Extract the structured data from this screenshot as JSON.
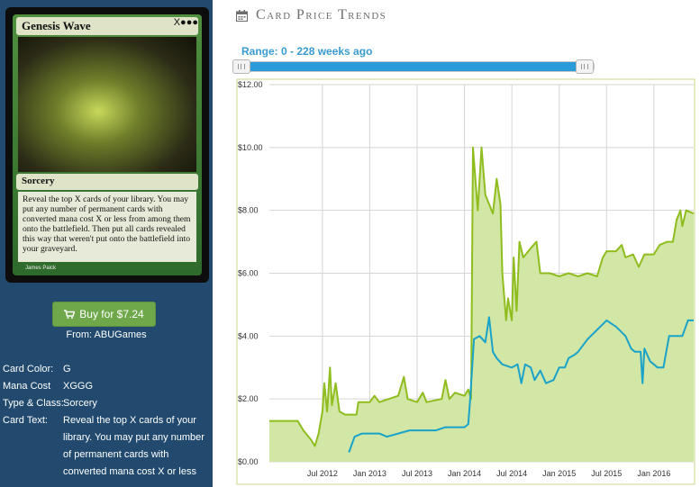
{
  "card": {
    "name": "Genesis Wave",
    "mana_symbols": "X●●●",
    "type_line": "Sorcery",
    "rules_text": "Reveal the top X cards of your library. You may put any number of permanent cards with converted mana cost X or less from among them onto the battlefield. Then put all cards revealed this way that weren't put onto the battlefield into your graveyard.",
    "artist": "James Paick"
  },
  "buy": {
    "label": "Buy for $7.24",
    "from": "From: ABUGames"
  },
  "details": [
    {
      "label": "Card Color:",
      "value": "G"
    },
    {
      "label": "Mana Cost",
      "value": "XGGG"
    },
    {
      "label": "Type & Class:",
      "value": "Sorcery"
    },
    {
      "label": "Card Text:",
      "value": "Reveal the top X cards of your library. You may put any number of permanent cards with converted mana cost X or less"
    }
  ],
  "trends": {
    "title": "Card Price Trends",
    "range_label": "Range: 0 - 228 weeks ago",
    "range_min": 0,
    "range_max": 228
  },
  "icons": {
    "calendar": "calendar-icon",
    "cart": "cart-icon"
  },
  "colors": {
    "paper": "#8fbd1d",
    "paper_fill": "#d2e6a6",
    "online": "#1aa3c8",
    "button": "#6fa84a",
    "sidebar": "#214a6e",
    "link": "#3a9bd0"
  },
  "chart_data": {
    "type": "area",
    "title": "",
    "xlabel": "",
    "ylabel": "",
    "ylim": [
      0,
      12
    ],
    "yticks": [
      "$0.00",
      "$2.00",
      "$4.00",
      "$6.00",
      "$8.00",
      "$10.00",
      "$12.00"
    ],
    "xlim": [
      2011.94,
      2016.42
    ],
    "xticks": [
      {
        "label": "Jul 2012",
        "x": 2012.5
      },
      {
        "label": "Jan 2013",
        "x": 2013.0
      },
      {
        "label": "Jul 2013",
        "x": 2013.5
      },
      {
        "label": "Jan 2014",
        "x": 2014.0
      },
      {
        "label": "Jul 2014",
        "x": 2014.5
      },
      {
        "label": "Jan 2015",
        "x": 2015.0
      },
      {
        "label": "Jul 2015",
        "x": 2015.5
      },
      {
        "label": "Jan 2016",
        "x": 2016.0
      }
    ],
    "grid": true,
    "series": [
      {
        "name": "",
        "color": "#8fbd1d",
        "points": [
          [
            2011.94,
            1.3
          ],
          [
            2012.24,
            1.3
          ],
          [
            2012.3,
            1.0
          ],
          [
            2012.38,
            0.7
          ],
          [
            2012.42,
            0.5
          ],
          [
            2012.46,
            0.9
          ],
          [
            2012.5,
            1.6
          ],
          [
            2012.52,
            2.5
          ],
          [
            2012.55,
            1.6
          ],
          [
            2012.58,
            3.0
          ],
          [
            2012.6,
            1.8
          ],
          [
            2012.64,
            2.5
          ],
          [
            2012.68,
            1.6
          ],
          [
            2012.74,
            1.5
          ],
          [
            2012.86,
            1.5
          ],
          [
            2012.88,
            1.9
          ],
          [
            2013.0,
            1.9
          ],
          [
            2013.05,
            2.1
          ],
          [
            2013.1,
            1.9
          ],
          [
            2013.2,
            2.0
          ],
          [
            2013.3,
            2.1
          ],
          [
            2013.36,
            2.7
          ],
          [
            2013.4,
            2.0
          ],
          [
            2013.5,
            1.9
          ],
          [
            2013.56,
            2.2
          ],
          [
            2013.6,
            1.9
          ],
          [
            2013.76,
            2.0
          ],
          [
            2013.8,
            2.6
          ],
          [
            2013.84,
            2.0
          ],
          [
            2013.9,
            2.2
          ],
          [
            2014.0,
            2.1
          ],
          [
            2014.04,
            2.3
          ],
          [
            2014.07,
            2.0
          ],
          [
            2014.09,
            10.0
          ],
          [
            2014.14,
            8.0
          ],
          [
            2014.18,
            10.0
          ],
          [
            2014.22,
            8.5
          ],
          [
            2014.3,
            7.9
          ],
          [
            2014.34,
            9.0
          ],
          [
            2014.38,
            8.2
          ],
          [
            2014.4,
            6.0
          ],
          [
            2014.44,
            4.5
          ],
          [
            2014.46,
            5.2
          ],
          [
            2014.5,
            4.5
          ],
          [
            2014.52,
            6.5
          ],
          [
            2014.55,
            4.8
          ],
          [
            2014.58,
            7.0
          ],
          [
            2014.62,
            6.5
          ],
          [
            2014.7,
            6.8
          ],
          [
            2014.76,
            7.0
          ],
          [
            2014.8,
            6.0
          ],
          [
            2014.9,
            6.0
          ],
          [
            2015.0,
            5.9
          ],
          [
            2015.1,
            6.0
          ],
          [
            2015.2,
            5.9
          ],
          [
            2015.3,
            6.0
          ],
          [
            2015.4,
            5.9
          ],
          [
            2015.46,
            6.5
          ],
          [
            2015.5,
            6.7
          ],
          [
            2015.6,
            6.7
          ],
          [
            2015.66,
            6.9
          ],
          [
            2015.7,
            6.5
          ],
          [
            2015.78,
            6.6
          ],
          [
            2015.84,
            6.2
          ],
          [
            2015.9,
            6.6
          ],
          [
            2016.0,
            6.6
          ],
          [
            2016.06,
            6.9
          ],
          [
            2016.14,
            7.0
          ],
          [
            2016.2,
            7.0
          ],
          [
            2016.24,
            7.7
          ],
          [
            2016.28,
            8.0
          ],
          [
            2016.3,
            7.5
          ],
          [
            2016.34,
            8.0
          ],
          [
            2016.42,
            7.9
          ]
        ]
      },
      {
        "name": "",
        "color": "#1aa3c8",
        "points": [
          [
            2012.78,
            0.3
          ],
          [
            2012.84,
            0.8
          ],
          [
            2012.92,
            0.9
          ],
          [
            2013.0,
            0.9
          ],
          [
            2013.1,
            0.9
          ],
          [
            2013.18,
            0.8
          ],
          [
            2013.3,
            0.9
          ],
          [
            2013.42,
            1.0
          ],
          [
            2013.56,
            1.0
          ],
          [
            2013.7,
            1.0
          ],
          [
            2013.8,
            1.1
          ],
          [
            2013.9,
            1.1
          ],
          [
            2014.0,
            1.1
          ],
          [
            2014.04,
            1.2
          ],
          [
            2014.06,
            2.0
          ],
          [
            2014.1,
            3.9
          ],
          [
            2014.16,
            4.0
          ],
          [
            2014.22,
            3.8
          ],
          [
            2014.26,
            4.6
          ],
          [
            2014.3,
            3.5
          ],
          [
            2014.34,
            3.3
          ],
          [
            2014.4,
            3.1
          ],
          [
            2014.5,
            3.0
          ],
          [
            2014.56,
            3.1
          ],
          [
            2014.6,
            2.5
          ],
          [
            2014.64,
            3.1
          ],
          [
            2014.7,
            3.0
          ],
          [
            2014.74,
            2.6
          ],
          [
            2014.8,
            2.9
          ],
          [
            2014.86,
            2.5
          ],
          [
            2014.94,
            2.6
          ],
          [
            2015.0,
            3.0
          ],
          [
            2015.06,
            3.0
          ],
          [
            2015.1,
            3.3
          ],
          [
            2015.16,
            3.4
          ],
          [
            2015.2,
            3.5
          ],
          [
            2015.3,
            3.9
          ],
          [
            2015.4,
            4.2
          ],
          [
            2015.5,
            4.5
          ],
          [
            2015.6,
            4.3
          ],
          [
            2015.7,
            4.0
          ],
          [
            2015.76,
            3.6
          ],
          [
            2015.8,
            3.5
          ],
          [
            2015.86,
            3.5
          ],
          [
            2015.88,
            2.5
          ],
          [
            2015.9,
            3.6
          ],
          [
            2015.96,
            3.2
          ],
          [
            2016.04,
            3.0
          ],
          [
            2016.1,
            3.0
          ],
          [
            2016.16,
            4.0
          ],
          [
            2016.24,
            4.0
          ],
          [
            2016.3,
            4.0
          ],
          [
            2016.36,
            4.5
          ],
          [
            2016.42,
            4.5
          ]
        ]
      }
    ]
  }
}
